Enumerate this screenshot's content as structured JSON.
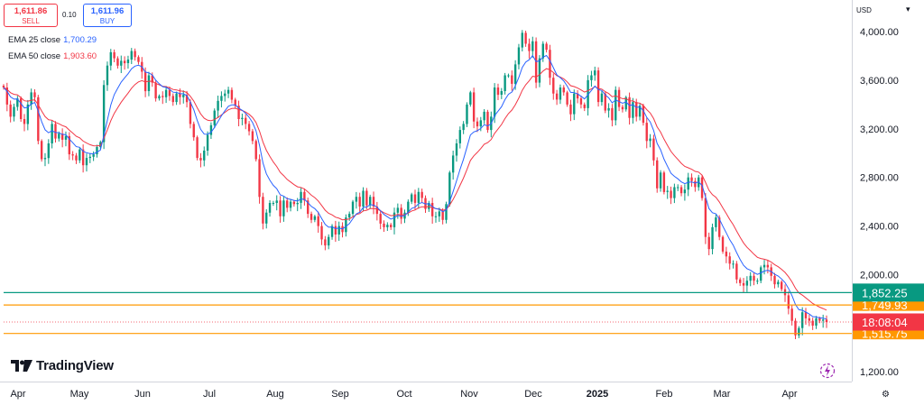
{
  "trade": {
    "sell_price": "1,611.86",
    "sell_label": "SELL",
    "spread": "0.10",
    "buy_price": "1,611.96",
    "buy_label": "BUY"
  },
  "legend": {
    "ema25_label": "EMA 25 close",
    "ema25_value": "1,700.29",
    "ema50_label": "EMA 50 close",
    "ema50_value": "1,903.60"
  },
  "currency": "USD",
  "brand": "TradingView",
  "colors": {
    "up": "#089981",
    "down": "#f23645",
    "ema25": "#2962ff",
    "ema50": "#f23645",
    "level_green": "#089981",
    "level_orange": "#ff9800"
  },
  "chart_data": {
    "type": "candlestick",
    "ylim": [
      1120,
      4260
    ],
    "yticks": [
      "4,000.00",
      "3,600.00",
      "3,200.00",
      "2,800.00",
      "2,400.00",
      "2,000.00",
      "1,600.00",
      "1,200.00"
    ],
    "yticks_values": [
      4000,
      3600,
      3200,
      2800,
      2400,
      2000,
      1600,
      1200
    ],
    "xticks": [
      "Apr",
      "May",
      "Jun",
      "Jul",
      "Aug",
      "Sep",
      "Oct",
      "Nov",
      "Dec",
      "2025",
      "Feb",
      "Mar",
      "Apr"
    ],
    "closes": [
      3540,
      3400,
      3300,
      3380,
      3450,
      3280,
      3240,
      3400,
      3500,
      3460,
      3100,
      2950,
      2960,
      3080,
      3240,
      3120,
      3160,
      3110,
      3140,
      2990,
      2980,
      2940,
      3030,
      2900,
      2960,
      2970,
      2990,
      3050,
      3090,
      3560,
      3720,
      3830,
      3780,
      3720,
      3760,
      3740,
      3770,
      3840,
      3790,
      3750,
      3670,
      3510,
      3640,
      3580,
      3450,
      3470,
      3460,
      3520,
      3470,
      3420,
      3490,
      3460,
      3480,
      3420,
      3240,
      3130,
      2960,
      2940,
      3020,
      3150,
      3230,
      3350,
      3430,
      3470,
      3490,
      3520,
      3440,
      3390,
      3280,
      3290,
      3240,
      3180,
      3100,
      2950,
      2640,
      2420,
      2510,
      2590,
      2590,
      2610,
      2480,
      2610,
      2550,
      2600,
      2580,
      2590,
      2680,
      2610,
      2500,
      2450,
      2480,
      2400,
      2290,
      2240,
      2310,
      2400,
      2330,
      2400,
      2350,
      2470,
      2500,
      2600,
      2640,
      2560,
      2690,
      2570,
      2640,
      2560,
      2500,
      2420,
      2390,
      2410,
      2390,
      2510,
      2550,
      2460,
      2510,
      2600,
      2660,
      2590,
      2680,
      2630,
      2540,
      2590,
      2480,
      2480,
      2520,
      2450,
      2580,
      2840,
      2980,
      3080,
      3190,
      3240,
      3400,
      3500,
      3260,
      3220,
      3270,
      3340,
      3190,
      3300,
      3540,
      3480,
      3510,
      3640,
      3640,
      3570,
      3730,
      3870,
      3990,
      3900,
      3840,
      3920,
      3580,
      3780,
      3900,
      3850,
      3620,
      3490,
      3440,
      3540,
      3500,
      3400,
      3320,
      3490,
      3450,
      3400,
      3370,
      3600,
      3640,
      3680,
      3420,
      3490,
      3350,
      3370,
      3270,
      3520,
      3380,
      3360,
      3460,
      3290,
      3420,
      3300,
      3390,
      3250,
      3100,
      3120,
      2940,
      2710,
      2840,
      2680,
      2690,
      2630,
      2720,
      2720,
      2670,
      2700,
      2800,
      2770,
      2720,
      2800,
      2630,
      2310,
      2210,
      2390,
      2470,
      2310,
      2190,
      2150,
      2090,
      2090,
      1960,
      1930,
      1910,
      1950,
      1990,
      1950,
      1950,
      2060,
      2080,
      2060,
      1990,
      1920,
      1940,
      1880,
      1830,
      1720,
      1620,
      1500,
      1560,
      1690,
      1640,
      1620,
      1580,
      1640,
      1620,
      1630,
      1610
    ]
  },
  "levels": {
    "green": "1,852.25",
    "orange_upper": "1,749.93",
    "current_time": "18:08:04",
    "orange_lower": "1,515.75"
  }
}
